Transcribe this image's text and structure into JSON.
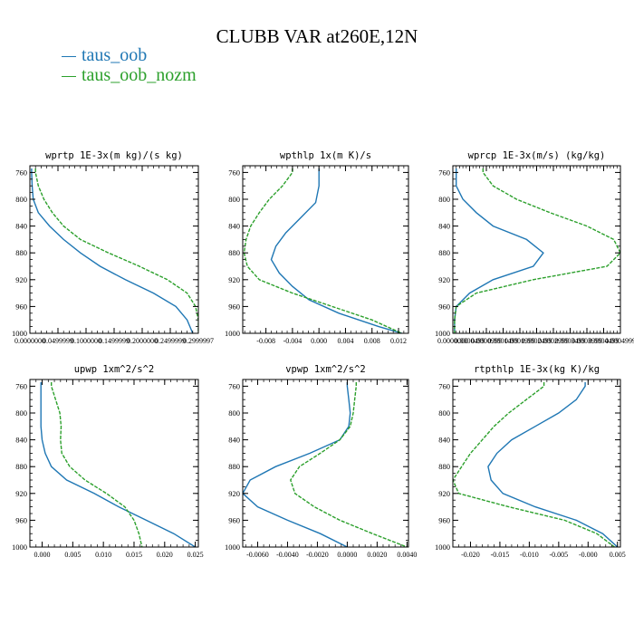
{
  "title": "CLUBB VAR at260E,12N",
  "legend": [
    {
      "label": "taus_oob",
      "color": "#1f77b4"
    },
    {
      "label": "taus_oob_nozm",
      "color": "#2ca02c"
    }
  ],
  "chart_data": [
    {
      "type": "line",
      "title": "wprtp",
      "subtitle": "1E-3x(m kg)/(s kg)",
      "ylim": [
        1000,
        750
      ],
      "yticks": [
        760,
        800,
        840,
        880,
        920,
        960,
        1000
      ],
      "xlim": [
        0,
        0.3
      ],
      "xticks": [
        0,
        0.05,
        0.1,
        0.15,
        0.2,
        0.25,
        0.3
      ],
      "xtick_labels": [
        "0.0000000",
        "0.0499999",
        "0.1000000",
        "0.1499999",
        "0.2000000",
        "0.2499999",
        "0.2999997"
      ],
      "series": [
        {
          "name": "taus_oob",
          "color": "#1f77b4",
          "y": [
            754,
            760,
            780,
            800,
            820,
            840,
            860,
            880,
            900,
            920,
            940,
            960,
            980,
            1000
          ],
          "x": [
            0.003,
            0.003,
            0.004,
            0.006,
            0.015,
            0.035,
            0.06,
            0.09,
            0.125,
            0.17,
            0.22,
            0.26,
            0.28,
            0.29
          ]
        },
        {
          "name": "taus_oob_nozm",
          "color": "#2ca02c",
          "y": [
            754,
            760,
            780,
            800,
            820,
            840,
            860,
            880,
            900,
            920,
            940,
            960,
            980,
            1000
          ],
          "x": [
            0.01,
            0.01,
            0.015,
            0.025,
            0.04,
            0.06,
            0.09,
            0.14,
            0.195,
            0.245,
            0.28,
            0.295,
            0.3,
            0.3
          ]
        }
      ]
    },
    {
      "type": "line",
      "title": "wpthlp",
      "subtitle": "1x(m K)/s",
      "ylim": [
        1000,
        750
      ],
      "yticks": [
        760,
        800,
        840,
        880,
        920,
        960,
        1000
      ],
      "xlim": [
        -0.0115,
        0.0135
      ],
      "xticks": [
        -0.008,
        -0.004,
        0,
        0.004,
        0.008,
        0.012
      ],
      "xtick_labels": [
        "-0.008",
        "-0.004",
        "0.000",
        "0.004",
        "0.008",
        "0.012"
      ],
      "series": [
        {
          "name": "taus_oob",
          "color": "#1f77b4",
          "y": [
            754,
            760,
            780,
            805,
            830,
            850,
            870,
            890,
            910,
            930,
            950,
            970,
            990,
            1000
          ],
          "x": [
            0.0,
            0.0,
            0.0,
            -0.0005,
            -0.003,
            -0.005,
            -0.0065,
            -0.0072,
            -0.006,
            -0.004,
            -0.0015,
            0.003,
            0.009,
            0.0125
          ]
        },
        {
          "name": "taus_oob_nozm",
          "color": "#2ca02c",
          "y": [
            754,
            760,
            780,
            800,
            820,
            840,
            860,
            880,
            900,
            920,
            940,
            960,
            980,
            1000
          ],
          "x": [
            -0.004,
            -0.004,
            -0.0055,
            -0.0075,
            -0.009,
            -0.0103,
            -0.011,
            -0.0113,
            -0.0108,
            -0.009,
            -0.004,
            0.002,
            0.008,
            0.0125
          ]
        }
      ]
    },
    {
      "type": "line",
      "title": "wprcp",
      "subtitle": "1E-3x(m/s) (kg/kg)",
      "ylim": [
        1000,
        750
      ],
      "yticks": [
        760,
        800,
        840,
        880,
        920,
        960,
        1000
      ],
      "xlim": [
        0,
        0.0005
      ],
      "xticks": [
        0,
        5e-05,
        0.0001,
        0.00015,
        0.0002,
        0.00025,
        0.0003,
        0.00035,
        0.0004,
        0.00045,
        0.0005
      ],
      "xtick_labels": [
        "0.0000000",
        "0.0000499",
        "0.0000999",
        "0.0001499",
        "0.0001999",
        "0.0002499",
        "0.0002999",
        "0.0003499",
        "0.0003999",
        "0.0004499",
        "0.0004999"
      ],
      "series": [
        {
          "name": "taus_oob",
          "color": "#1f77b4",
          "y": [
            754,
            760,
            780,
            800,
            820,
            840,
            860,
            880,
            900,
            920,
            940,
            960,
            980,
            1000
          ],
          "x": [
            1e-05,
            1e-05,
            1e-05,
            3e-05,
            7e-05,
            0.00012,
            0.00022,
            0.00027,
            0.00024,
            0.00012,
            5e-05,
            1e-05,
            5e-06,
            5e-06
          ]
        },
        {
          "name": "taus_oob_nozm",
          "color": "#2ca02c",
          "y": [
            754,
            760,
            780,
            800,
            820,
            840,
            860,
            880,
            900,
            920,
            940,
            960,
            980,
            1000
          ],
          "x": [
            9e-05,
            9e-05,
            0.00012,
            0.00019,
            0.00029,
            0.0004,
            0.00048,
            0.0005,
            0.00046,
            0.00024,
            7e-05,
            1e-05,
            5e-06,
            5e-06
          ]
        }
      ]
    },
    {
      "type": "line",
      "title": "upwp",
      "subtitle": "1xm^2/s^2",
      "ylim": [
        1000,
        750
      ],
      "yticks": [
        760,
        800,
        840,
        880,
        920,
        960,
        1000
      ],
      "xlim": [
        -0.002,
        0.0255
      ],
      "xticks": [
        0,
        0.005,
        0.01,
        0.015,
        0.02,
        0.025
      ],
      "xtick_labels": [
        "0.000",
        "0.005",
        "0.010",
        "0.015",
        "0.020",
        "0.025"
      ],
      "series": [
        {
          "name": "taus_oob",
          "color": "#1f77b4",
          "y": [
            754,
            760,
            780,
            800,
            820,
            840,
            860,
            880,
            900,
            920,
            940,
            960,
            980,
            1000
          ],
          "x": [
            -0.0002,
            -0.0002,
            -0.0002,
            -0.0002,
            -0.0002,
            0.0,
            0.0005,
            0.0015,
            0.004,
            0.0085,
            0.0125,
            0.017,
            0.0215,
            0.025
          ]
        },
        {
          "name": "taus_oob_nozm",
          "color": "#2ca02c",
          "y": [
            754,
            760,
            780,
            800,
            820,
            840,
            860,
            880,
            900,
            920,
            940,
            960,
            980,
            1000
          ],
          "x": [
            0.0015,
            0.0015,
            0.0022,
            0.0029,
            0.0031,
            0.003,
            0.0032,
            0.0045,
            0.007,
            0.0105,
            0.0135,
            0.015,
            0.0158,
            0.0163
          ]
        }
      ]
    },
    {
      "type": "line",
      "title": "vpwp",
      "subtitle": "1xm^2/s^2",
      "ylim": [
        1000,
        750
      ],
      "yticks": [
        760,
        800,
        840,
        880,
        920,
        960,
        1000
      ],
      "xlim": [
        -0.007,
        0.0041
      ],
      "xticks": [
        -0.006,
        -0.004,
        -0.002,
        0,
        0.002,
        0.004
      ],
      "xtick_labels": [
        "-0.0060",
        "-0.0040",
        "-0.0020",
        "0.0000",
        "0.0020",
        "0.0040"
      ],
      "series": [
        {
          "name": "taus_oob",
          "color": "#1f77b4",
          "y": [
            754,
            760,
            780,
            800,
            820,
            840,
            860,
            880,
            900,
            920,
            940,
            960,
            980,
            1000
          ],
          "x": [
            0.0,
            0.0,
            0.0001,
            0.0002,
            0.0001,
            -0.0005,
            -0.0025,
            -0.0048,
            -0.0065,
            -0.007,
            -0.006,
            -0.004,
            -0.0018,
            0.0
          ]
        },
        {
          "name": "taus_oob_nozm",
          "color": "#2ca02c",
          "y": [
            754,
            760,
            780,
            800,
            820,
            840,
            860,
            880,
            900,
            920,
            940,
            960,
            980,
            1000
          ],
          "x": [
            0.0006,
            0.0006,
            0.0005,
            0.0004,
            0.0002,
            -0.0005,
            -0.0018,
            -0.0032,
            -0.0038,
            -0.0035,
            -0.0022,
            -0.0005,
            0.0017,
            0.004
          ]
        }
      ]
    },
    {
      "type": "line",
      "title": "rtpthlp",
      "subtitle": "1E-3x(kg K)/kg",
      "ylim": [
        1000,
        750
      ],
      "yticks": [
        760,
        800,
        840,
        880,
        920,
        960,
        1000
      ],
      "xlim": [
        -0.023,
        0.0055
      ],
      "xticks": [
        -0.02,
        -0.015,
        -0.01,
        -0.005,
        0,
        0.005
      ],
      "xtick_labels": [
        "-0.020",
        "-0.015",
        "-0.010",
        "-0.005",
        "-0.000",
        "0.005"
      ],
      "series": [
        {
          "name": "taus_oob",
          "color": "#1f77b4",
          "y": [
            754,
            760,
            780,
            800,
            820,
            840,
            860,
            880,
            900,
            920,
            940,
            960,
            980,
            1000
          ],
          "x": [
            -0.0005,
            -0.0005,
            -0.002,
            -0.005,
            -0.009,
            -0.013,
            -0.0155,
            -0.017,
            -0.0165,
            -0.0145,
            -0.009,
            -0.002,
            0.0025,
            0.005
          ]
        },
        {
          "name": "taus_oob_nozm",
          "color": "#2ca02c",
          "y": [
            754,
            760,
            780,
            800,
            820,
            840,
            860,
            880,
            900,
            920,
            940,
            960,
            980,
            1000
          ],
          "x": [
            -0.0075,
            -0.0075,
            -0.0105,
            -0.0135,
            -0.016,
            -0.018,
            -0.02,
            -0.0215,
            -0.023,
            -0.022,
            -0.0135,
            -0.004,
            0.0015,
            0.0045
          ]
        }
      ]
    }
  ]
}
